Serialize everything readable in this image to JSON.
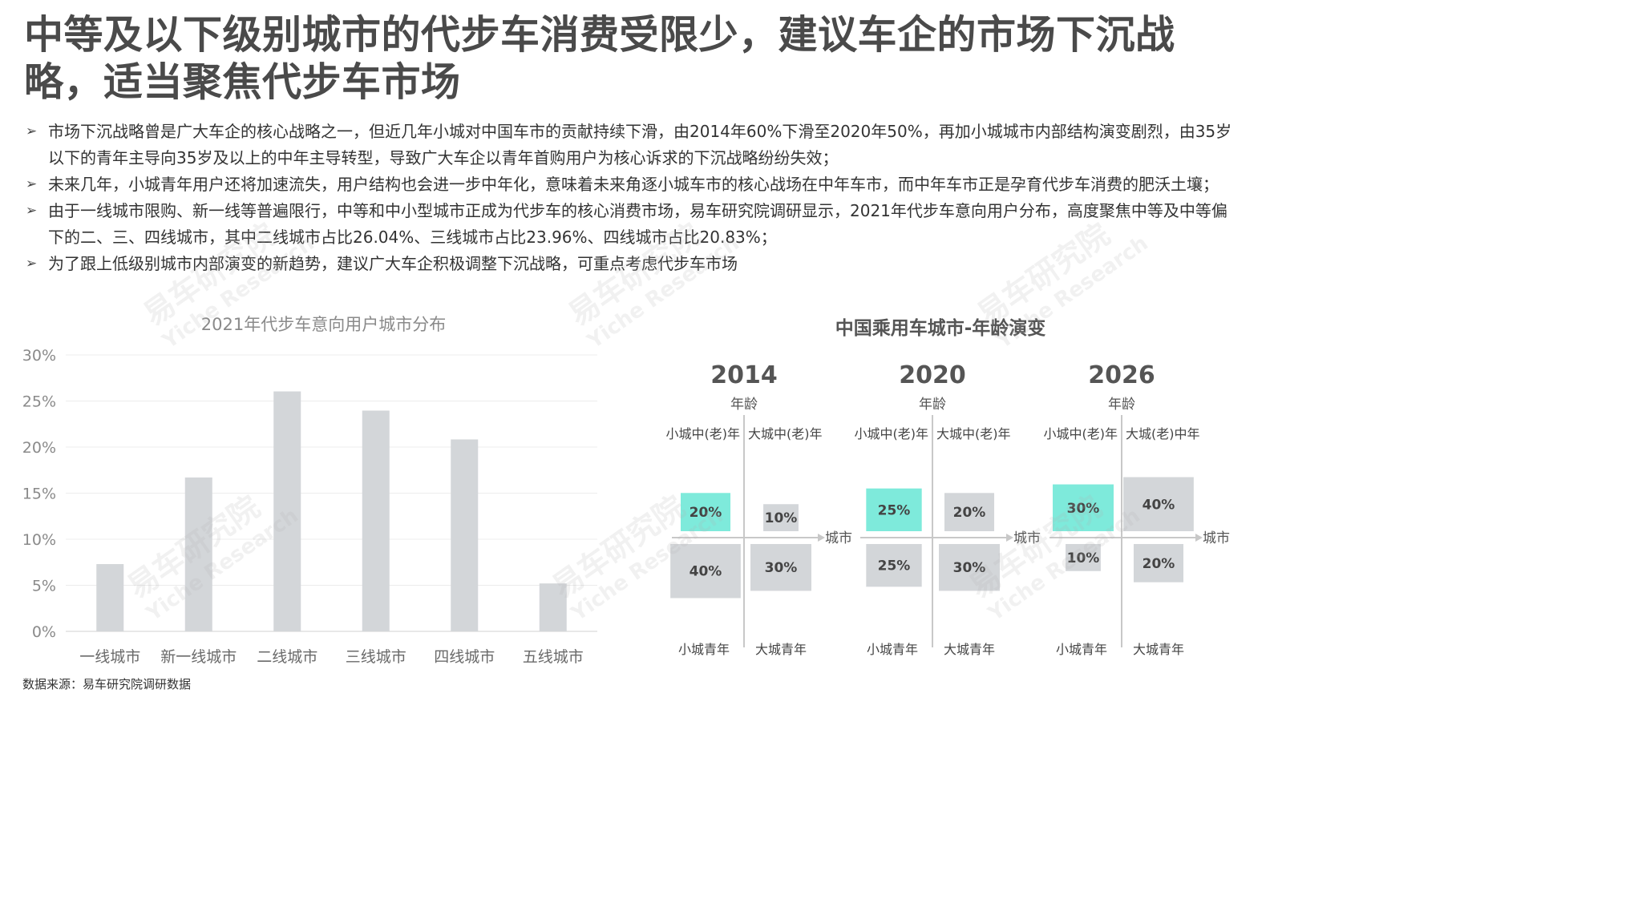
{
  "title": "中等及以下级别城市的代步车消费受限少，建议车企的市场下沉战略，适当聚焦代步车市场",
  "bullets": [
    "市场下沉战略曾是广大车企的核心战略之一，但近几年小城对中国车市的贡献持续下滑，由2014年60%下滑至2020年50%，再加小城城市内部结构演变剧烈，由35岁以下的青年主导向35岁及以上的中年主导转型，导致广大车企以青年首购用户为核心诉求的下沉战略纷纷失效；",
    "未来几年，小城青年用户还将加速流失，用户结构也会进一步中年化，意味着未来角逐小城车市的核心战场在中年车市，而中年车市正是孕育代步车消费的肥沃土壤；",
    "由于一线城市限购、新一线等普遍限行，中等和中小型城市正成为代步车的核心消费市场，易车研究院调研显示，2021年代步车意向用户分布，高度聚焦中等及中等偏下的二、三、四线城市，其中二线城市占比26.04%、三线城市占比23.96%、四线城市占比20.83%；",
    "为了跟上低级别城市内部演变的新趋势，建议广大车企积极调整下沉战略，可重点考虑代步车市场"
  ],
  "bullet_marker": "➢",
  "watermark": {
    "cn": "易车研究院",
    "en": "Yiche Research"
  },
  "source": "数据来源：易车研究院调研数据",
  "colors": {
    "bar": "#d3d6d9",
    "highlight": "#7eeadb",
    "box": "#d3d6d9",
    "axis": "#c8c8c8"
  },
  "chart_data": [
    {
      "type": "bar",
      "title": "2021年代步车意向用户城市分布",
      "categories": [
        "一线城市",
        "新一线城市",
        "二线城市",
        "三线城市",
        "四线城市",
        "五线城市"
      ],
      "values": [
        7.3,
        16.7,
        26.04,
        23.96,
        20.83,
        5.2
      ],
      "ylim": [
        0,
        30
      ],
      "yticks": [
        0,
        5,
        10,
        15,
        20,
        25,
        30
      ],
      "ytick_labels": [
        "0%",
        "5%",
        "10%",
        "15%",
        "20%",
        "25%",
        "30%"
      ],
      "grid": true
    },
    {
      "type": "quadrant",
      "title": "中国乘用车城市-年龄演变",
      "y_axis_label": "年龄",
      "x_axis_label": "城市",
      "panels": [
        {
          "year": "2014",
          "quadrants": [
            {
              "label": "小城中(老)年",
              "value": 20,
              "text": "20%",
              "highlight": true
            },
            {
              "label": "大城中(老)年",
              "value": 10,
              "text": "10%",
              "highlight": false
            },
            {
              "label": "小城青年",
              "value": 40,
              "text": "40%",
              "highlight": false
            },
            {
              "label": "大城青年",
              "value": 30,
              "text": "30%",
              "highlight": false
            }
          ]
        },
        {
          "year": "2020",
          "quadrants": [
            {
              "label": "小城中(老)年",
              "value": 25,
              "text": "25%",
              "highlight": true
            },
            {
              "label": "大城中(老)年",
              "value": 20,
              "text": "20%",
              "highlight": false
            },
            {
              "label": "小城青年",
              "value": 25,
              "text": "25%",
              "highlight": false
            },
            {
              "label": "大城青年",
              "value": 30,
              "text": "30%",
              "highlight": false
            }
          ]
        },
        {
          "year": "2026",
          "quadrants": [
            {
              "label": "小城中(老)年",
              "value": 30,
              "text": "30%",
              "highlight": true
            },
            {
              "label": "大城(老)中年",
              "value": 40,
              "text": "40%",
              "highlight": false
            },
            {
              "label": "小城青年",
              "value": 10,
              "text": "10%",
              "highlight": false
            },
            {
              "label": "大城青年",
              "value": 20,
              "text": "20%",
              "highlight": false
            }
          ]
        }
      ]
    }
  ]
}
